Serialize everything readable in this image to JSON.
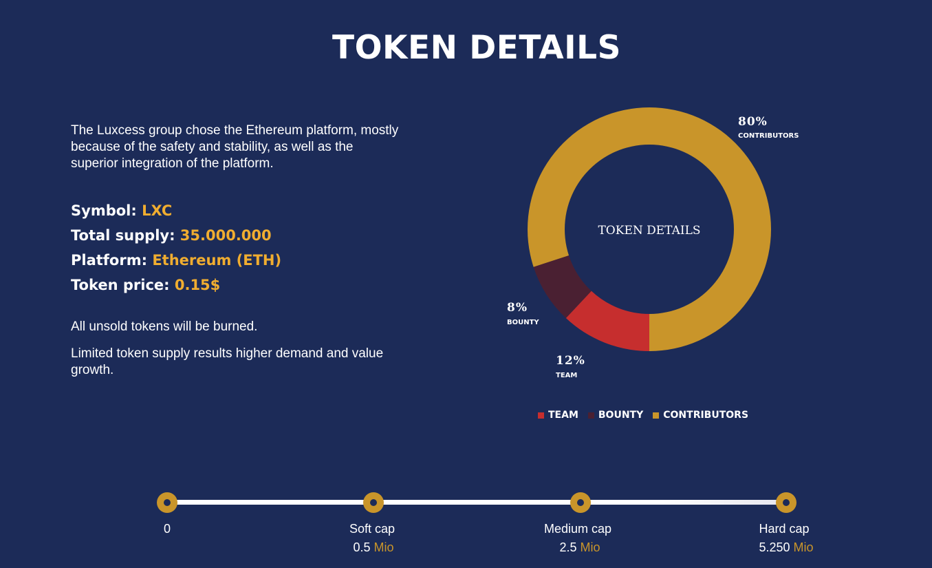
{
  "page": {
    "title": "TOKEN DETAILS"
  },
  "intro": "The Luxcess group chose the Ethereum platform, mostly because of the safety and stability, as well as the superior integration of the platform.",
  "specs": [
    {
      "label": "Symbol:",
      "value": "LXC"
    },
    {
      "label": "Total supply:",
      "value": "35.000.000"
    },
    {
      "label": "Platform:",
      "value": "Ethereum (ETH)"
    },
    {
      "label": "Token price:",
      "value": "0.15$"
    }
  ],
  "notes": [
    "All unsold tokens will be burned.",
    "Limited token supply results higher demand and value growth."
  ],
  "chart_data": {
    "type": "pie",
    "title": "",
    "center_label": "TOKEN DETAILS",
    "categories": [
      "TEAM",
      "BOUNTY",
      "CONTRIBUTORS"
    ],
    "values": [
      12,
      8,
      80
    ],
    "labels": [
      "12%",
      "8%",
      "80%"
    ],
    "colors": [
      "#c62e2e",
      "#4a2032",
      "#c9952a"
    ],
    "legend": "bottom"
  },
  "legend": [
    {
      "name": "TEAM",
      "color": "#c62e2e"
    },
    {
      "name": "BOUNTY",
      "color": "#4a2032"
    },
    {
      "name": "CONTRIBUTORS",
      "color": "#c9952a"
    }
  ],
  "milestones": [
    {
      "label": "0",
      "amount": "",
      "unit": ""
    },
    {
      "label": "Soft cap",
      "amount": "0.5",
      "unit": "Mio"
    },
    {
      "label": "Medium cap",
      "amount": "2.5",
      "unit": "Mio"
    },
    {
      "label": "Hard cap",
      "amount": "5.250",
      "unit": "Mio"
    }
  ],
  "colors": {
    "background": "#1c2b58",
    "accent": "#f0ad30",
    "gold": "#c9952a"
  }
}
